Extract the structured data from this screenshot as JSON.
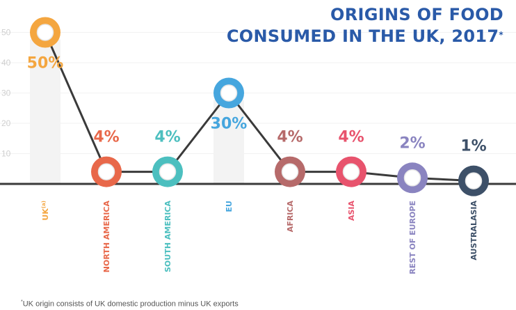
{
  "title_line1": "ORIGINS OF FOOD",
  "title_line2": "CONSUMED IN THE UK, 2017",
  "title_mark": "*",
  "footnote_mark": "*",
  "footnote": "UK origin consists of UK domestic production minus UK exports",
  "chart_data": {
    "type": "line",
    "title": "ORIGINS OF FOOD CONSUMED IN THE UK, 2017*",
    "categories": [
      "UK",
      "NORTH AMERICA",
      "SOUTH AMERICA",
      "EU",
      "AFRICA",
      "ASIA",
      "REST OF EUROPE",
      "AUSTRALASIA"
    ],
    "category_superscripts": [
      "(a)",
      "",
      "",
      "",
      "",
      "",
      "",
      ""
    ],
    "values": [
      50,
      4,
      4,
      30,
      4,
      4,
      2,
      1
    ],
    "data_labels": [
      "50%",
      "4%",
      "4%",
      "30%",
      "4%",
      "4%",
      "2%",
      "1%"
    ],
    "colors": [
      "#f4a640",
      "#e8684a",
      "#4cbfbf",
      "#46a6de",
      "#b66a6a",
      "#e8536d",
      "#8a84c0",
      "#3d5068"
    ],
    "y_ticks": [
      10,
      20,
      30,
      40,
      50
    ],
    "ylim": [
      0,
      55
    ],
    "grid": true,
    "line_color": "#3a3a3a"
  }
}
